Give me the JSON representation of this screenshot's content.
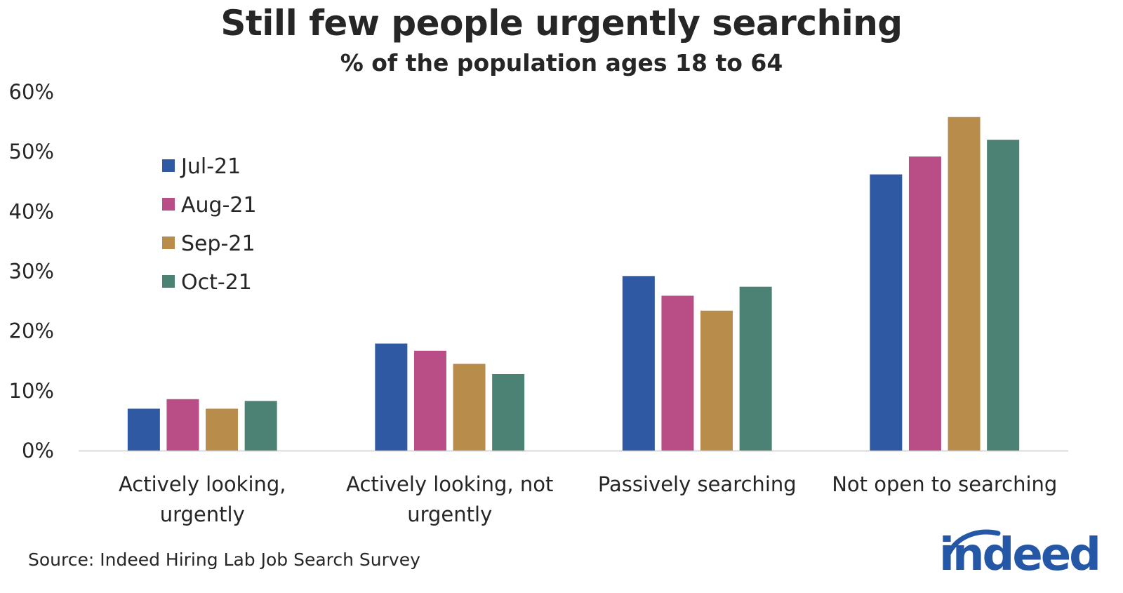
{
  "title": "Still few people urgently searching",
  "subtitle": "% of the population ages 18 to 64",
  "source": "Source: Indeed Hiring Lab Job Search Survey",
  "logo": {
    "text": "indeed",
    "color": "#2557a7"
  },
  "chart_data": {
    "type": "bar",
    "title": "Still few people urgently searching",
    "subtitle": "% of the population ages 18 to 64",
    "xlabel": "",
    "ylabel": "",
    "ylim": [
      0,
      60
    ],
    "yticks": [
      "0%",
      "10%",
      "20%",
      "30%",
      "40%",
      "50%",
      "60%"
    ],
    "ytick_values": [
      0,
      10,
      20,
      30,
      40,
      50,
      60
    ],
    "grid": false,
    "legend_position": "top-left",
    "categories": [
      [
        "Actively looking,",
        "urgently"
      ],
      [
        "Actively looking, not",
        "urgently"
      ],
      [
        "Passively searching"
      ],
      [
        "Not open to searching"
      ]
    ],
    "series": [
      {
        "name": "Jul-21",
        "color": "#2f5aa3",
        "values": [
          7.0,
          17.9,
          29.2,
          46.2
        ]
      },
      {
        "name": "Aug-21",
        "color": "#b94d85",
        "values": [
          8.6,
          16.7,
          25.9,
          49.2
        ]
      },
      {
        "name": "Sep-21",
        "color": "#b88c4a",
        "values": [
          7.0,
          14.5,
          23.4,
          55.8
        ]
      },
      {
        "name": "Oct-21",
        "color": "#4b8273",
        "values": [
          8.3,
          12.8,
          27.4,
          52.0
        ]
      }
    ]
  }
}
